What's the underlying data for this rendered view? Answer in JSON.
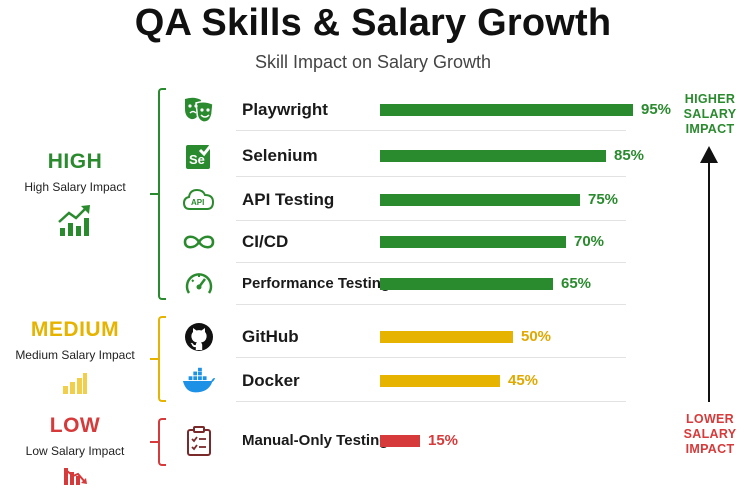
{
  "header": {
    "title": "QA Skills & Salary Growth",
    "subtitle": "Skill Impact on Salary Growth"
  },
  "colors": {
    "high": "#2a8a2e",
    "medium": "#e6b400",
    "low": "#d63a3a",
    "accent": "#111111"
  },
  "groups": [
    {
      "key": "high",
      "label": "HIGH",
      "caption": "High Salary Impact",
      "icon": "trend-up-chart-icon"
    },
    {
      "key": "medium",
      "label": "MEDIUM",
      "caption": "Medium Salary Impact",
      "icon": "bar-chart-icon"
    },
    {
      "key": "low",
      "label": "LOW",
      "caption": "Low Salary Impact",
      "icon": "trend-down-chart-icon"
    }
  ],
  "side_labels": {
    "top": [
      "HIGHER",
      "SALARY",
      "IMPACT"
    ],
    "bottom": [
      "LOWER",
      "SALARY",
      "IMPACT"
    ]
  },
  "chart_data": {
    "type": "bar",
    "orientation": "horizontal",
    "title": "QA Skills & Salary Growth",
    "subtitle": "Skill Impact on Salary Growth",
    "xlim": [
      0,
      100
    ],
    "grid": false,
    "categories": [
      "Playwright",
      "Selenium",
      "API Testing",
      "CI/CD",
      "Performance Testing",
      "GitHub",
      "Docker",
      "Manual-Only Testing"
    ],
    "values": [
      95,
      85,
      75,
      70,
      65,
      50,
      45,
      15
    ],
    "value_labels": [
      "95%",
      "85%",
      "75%",
      "70%",
      "65%",
      "50%",
      "45%",
      "15%"
    ],
    "groups": [
      "high",
      "high",
      "high",
      "high",
      "high",
      "medium",
      "medium",
      "low"
    ],
    "icons": [
      "theater-masks-icon",
      "selenium-logo-icon",
      "api-cloud-icon",
      "infinity-loop-icon",
      "speedometer-icon",
      "github-logo-icon",
      "docker-whale-icon",
      "clipboard-checklist-icon"
    ]
  }
}
